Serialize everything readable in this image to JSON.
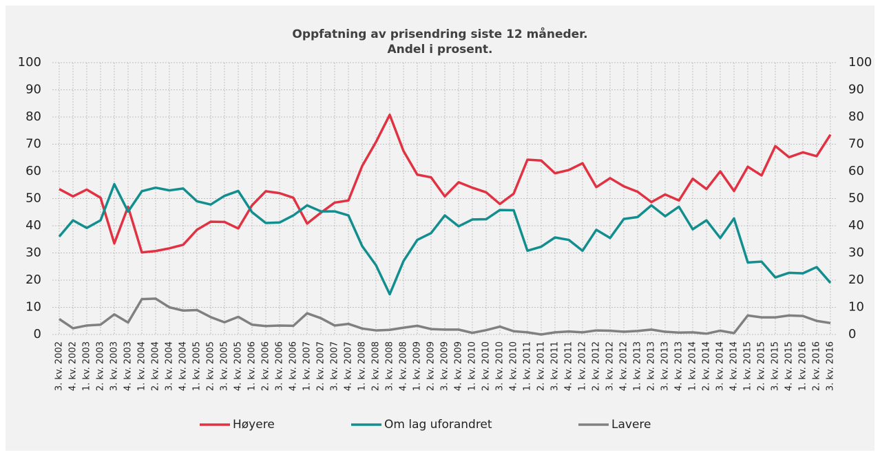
{
  "chart_data": {
    "type": "line",
    "title": [
      "Oppfatning av prisendring siste 12 måneder.",
      "Andel i prosent."
    ],
    "categories": [
      "3. kv. 2002",
      "4. kv. 2002",
      "1. kv. 2003",
      "2. kv. 2003",
      "3. kv. 2003",
      "4. kv. 2003",
      "1. kv. 2004",
      "2. kv. 2004",
      "3. kv. 2004",
      "4. kv. 2004",
      "1. kv. 2005",
      "2. kv. 2005",
      "3. kv. 2005",
      "4. kv. 2005",
      "1. kv. 2006",
      "2. kv. 2006",
      "3. kv. 2006",
      "4. kv. 2006",
      "1. kv. 2007",
      "2. kv. 2007",
      "3. kv. 2007",
      "4. kv. 2007",
      "1. kv. 2008",
      "2. kv. 2008",
      "3. kv. 2008",
      "4. kv. 2008",
      "1. kv. 2009",
      "2. kv. 2009",
      "3. kv. 2009",
      "4. kv. 2009",
      "1. kv. 2010",
      "2. kv. 2010",
      "3. kv. 2010",
      "4. kv. 2010",
      "1. kv. 2011",
      "2. kv. 2011",
      "3. kv. 2011",
      "4. kv. 2011",
      "1. kv. 2012",
      "2. kv. 2012",
      "3. kv. 2012",
      "4. kv. 2012",
      "1. kv. 2013",
      "2. kv. 2013",
      "3. kv. 2013",
      "4. kv. 2013",
      "1. kv. 2014",
      "2. kv. 2014",
      "3. kv. 2014",
      "4. kv. 2014",
      "1. kv. 2015",
      "2. kv. 2015",
      "3. kv. 2015",
      "4. kv. 2015",
      "1. kv. 2016",
      "2. kv. 2016",
      "3. kv. 2016"
    ],
    "series": [
      {
        "name": "Høyere",
        "color": "#e03242",
        "values": [
          53.5,
          50.8,
          53.3,
          50.3,
          33.5,
          47,
          30.2,
          30.7,
          31.7,
          33,
          38.5,
          41.5,
          41.4,
          39,
          47.5,
          52.7,
          52,
          50.3,
          40.8,
          44.8,
          48.5,
          49.3,
          62,
          70.8,
          80.8,
          67.5,
          58.8,
          57.8,
          50.8,
          56,
          54,
          52.3,
          48,
          51.8,
          64.3,
          64,
          59.3,
          60.5,
          63,
          54.2,
          57.5,
          54.5,
          52.5,
          48.7,
          51.5,
          49.3,
          57.3,
          53.5,
          60,
          52.8,
          61.7,
          58.5,
          69.3,
          65.2,
          67,
          65.6,
          73.5
        ]
      },
      {
        "name": "Om lag uforandret",
        "color": "#138e8e",
        "values": [
          36,
          42,
          39.2,
          42,
          55.3,
          45.2,
          52.7,
          54,
          53,
          53.7,
          49,
          47.8,
          51,
          52.8,
          45,
          41,
          41.2,
          43.8,
          47.5,
          45.3,
          45.3,
          43.8,
          32.5,
          25.5,
          14.8,
          27,
          34.8,
          37.3,
          43.8,
          39.8,
          42.3,
          42.4,
          45.8,
          45.7,
          30.8,
          32.3,
          35.7,
          34.8,
          30.8,
          38.5,
          35.5,
          42.5,
          43.2,
          47.5,
          43.5,
          47,
          38.7,
          42,
          35.5,
          42.7,
          26.5,
          26.8,
          21,
          22.7,
          22.5,
          24.8,
          19
        ]
      },
      {
        "name": "Lavere",
        "color": "#808080",
        "values": [
          5.7,
          2.3,
          3.3,
          3.6,
          7.4,
          4.4,
          13,
          13.2,
          10,
          8.8,
          9,
          6.4,
          4.5,
          6.5,
          3.6,
          3.1,
          3.3,
          3.2,
          7.8,
          6,
          3.3,
          3.9,
          2.2,
          1.5,
          1.7,
          2.5,
          3.2,
          2,
          1.8,
          1.8,
          0.6,
          1.6,
          2.9,
          1.2,
          0.8,
          0,
          0.8,
          1.1,
          0.8,
          1.5,
          1.4,
          1,
          1.3,
          1.8,
          1,
          0.7,
          0.8,
          0.3,
          1.4,
          0.5,
          7,
          6.3,
          6.3,
          7,
          6.8,
          5,
          4.2
        ]
      }
    ],
    "ylim": [
      0,
      100
    ],
    "yticks": [
      0,
      10,
      20,
      30,
      40,
      50,
      60,
      70,
      80,
      90,
      100
    ],
    "y2lim": [
      0,
      100
    ],
    "y2ticks": [
      0,
      10,
      20,
      30,
      40,
      50,
      60,
      70,
      80,
      90,
      100
    ],
    "grid": true,
    "legend": "bottom"
  }
}
